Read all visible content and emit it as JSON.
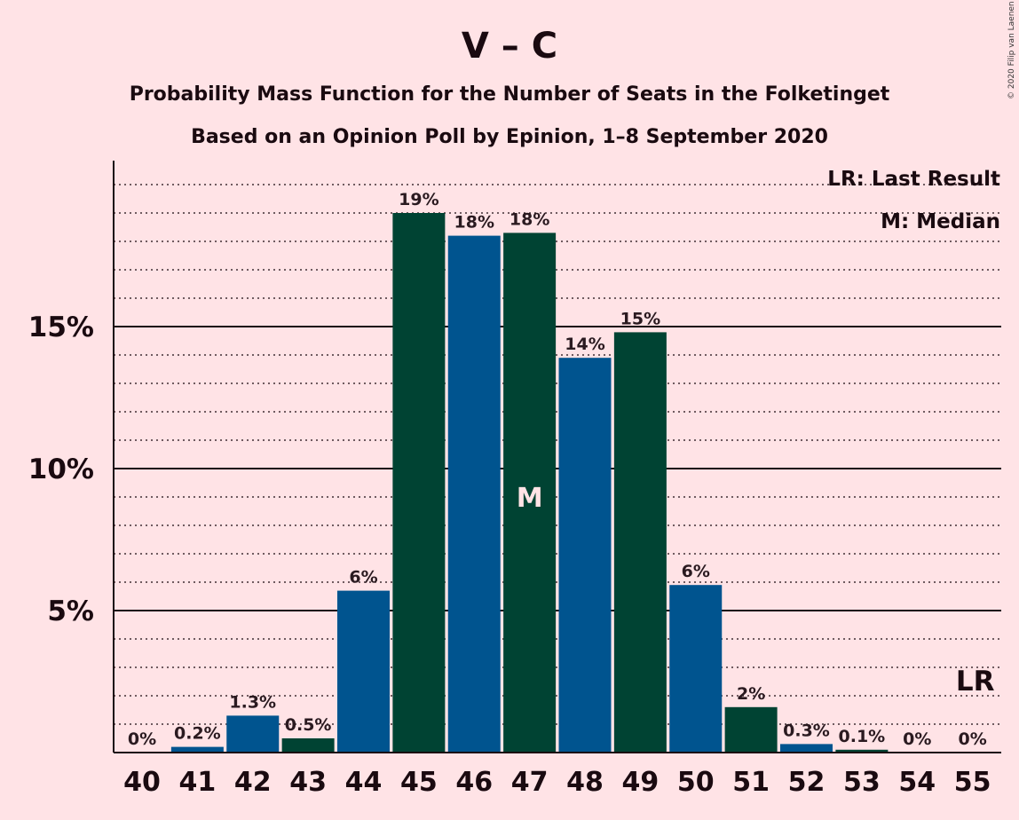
{
  "title": "V – C",
  "subtitle_line1": "Probability Mass Function for the Number of Seats in the Folketinget",
  "subtitle_line2": "Based on an Opinion Poll by Epinion, 1–8 September 2020",
  "copyright": "© 2020 Filip van Laenen",
  "legend": {
    "last_result": "LR: Last Result",
    "median": "M: Median"
  },
  "colors": {
    "background": "#ffe3e6",
    "bar_blue": "#00548f",
    "bar_green": "#004333",
    "text": "#1a0a10"
  },
  "chart_data": {
    "type": "bar",
    "categories": [
      "40",
      "41",
      "42",
      "43",
      "44",
      "45",
      "46",
      "47",
      "48",
      "49",
      "50",
      "51",
      "52",
      "53",
      "54",
      "55"
    ],
    "values": [
      0,
      0.2,
      1.3,
      0.5,
      5.7,
      19.0,
      18.2,
      18.3,
      13.9,
      14.8,
      5.9,
      1.6,
      0.3,
      0.1,
      0,
      0
    ],
    "labels": [
      "0%",
      "0.2%",
      "1.3%",
      "0.5%",
      "6%",
      "19%",
      "18%",
      "18%",
      "14%",
      "15%",
      "6%",
      "2%",
      "0.3%",
      "0.1%",
      "0%",
      "0%"
    ],
    "bar_colors": [
      "#004333",
      "#00548f",
      "#00548f",
      "#004333",
      "#00548f",
      "#004333",
      "#00548f",
      "#004333",
      "#00548f",
      "#004333",
      "#00548f",
      "#004333",
      "#00548f",
      "#004333",
      "#00548f",
      "#004333"
    ],
    "yticks": [
      5,
      10,
      15
    ],
    "ytick_labels": [
      "5%",
      "10%",
      "15%"
    ],
    "ylim": [
      0,
      20.8
    ],
    "minor_grid_step": 1,
    "grid": true,
    "median_seat": "47",
    "median_marker": "M",
    "last_result_seat": "55",
    "last_result_marker": "LR",
    "legend_placement": "top-right"
  }
}
